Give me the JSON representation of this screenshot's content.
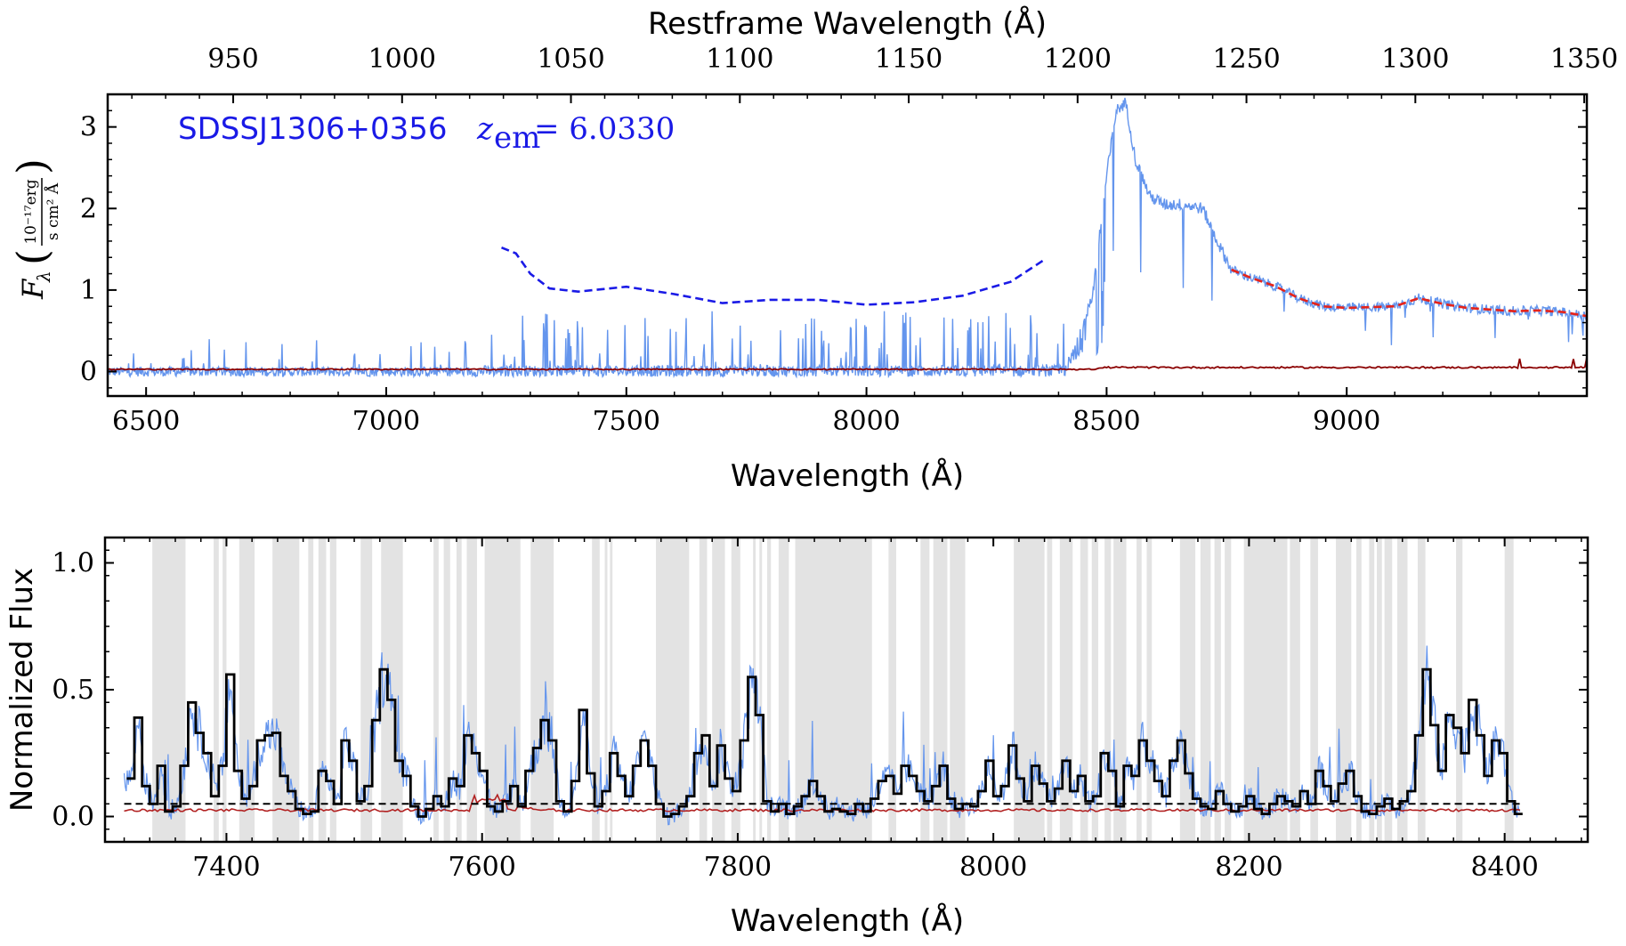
{
  "chart_data": [
    {
      "type": "line",
      "panel": "top",
      "xlabel": "Wavelength (Å)",
      "top_xlabel": "Restframe Wavelength (Å)",
      "ylabel_symbol": "F",
      "ylabel_sub": "λ",
      "ylabel_num": "10⁻¹⁷erg",
      "ylabel_den": "s cm² Å",
      "xlim": [
        6420,
        9500
      ],
      "ylim": [
        -0.3,
        3.4
      ],
      "x_ticks": [
        6500,
        7000,
        7500,
        8000,
        8500,
        9000
      ],
      "y_ticks": [
        0,
        1,
        2,
        3
      ],
      "top_ticks": [
        950,
        1000,
        1050,
        1100,
        1150,
        1200,
        1250,
        1300,
        1350
      ],
      "redshift": 6.033,
      "annotation_name": "SDSSJ1306+0356",
      "annotation_z_symbol": "z",
      "annotation_z_sub": "em",
      "annotation_z_value": "= 6.0330",
      "continuum_blue_dashed": [
        [
          7240,
          1.52
        ],
        [
          7270,
          1.45
        ],
        [
          7300,
          1.2
        ],
        [
          7340,
          1.02
        ],
        [
          7400,
          0.98
        ],
        [
          7500,
          1.04
        ],
        [
          7600,
          0.95
        ],
        [
          7700,
          0.84
        ],
        [
          7800,
          0.88
        ],
        [
          7900,
          0.88
        ],
        [
          8000,
          0.82
        ],
        [
          8100,
          0.85
        ],
        [
          8200,
          0.93
        ],
        [
          8300,
          1.1
        ],
        [
          8370,
          1.37
        ]
      ],
      "continuum_red_dashed": [
        [
          8760,
          1.25
        ],
        [
          8800,
          1.15
        ],
        [
          8850,
          1.05
        ],
        [
          8900,
          0.9
        ],
        [
          8950,
          0.8
        ],
        [
          9000,
          0.78
        ],
        [
          9050,
          0.79
        ],
        [
          9100,
          0.8
        ],
        [
          9150,
          0.9
        ],
        [
          9200,
          0.83
        ],
        [
          9250,
          0.78
        ],
        [
          9300,
          0.76
        ],
        [
          9350,
          0.74
        ],
        [
          9400,
          0.75
        ],
        [
          9450,
          0.73
        ],
        [
          9500,
          0.68
        ]
      ]
    },
    {
      "type": "line",
      "panel": "bottom",
      "xlabel": "Wavelength (Å)",
      "ylabel": "Normalized Flux",
      "xlim": [
        7305,
        8465
      ],
      "ylim": [
        -0.1,
        1.1
      ],
      "x_ticks": [
        7400,
        7600,
        7800,
        8000,
        8200,
        8400
      ],
      "y_ticks": [
        0.0,
        0.5,
        1.0
      ],
      "y_tick_labels": [
        "0.0",
        "0.5",
        "1.0"
      ],
      "dashed_level": 0.05,
      "error_level": 0.025,
      "masked_regions": [
        [
          7342,
          7368
        ],
        [
          7390,
          7394
        ],
        [
          7397,
          7400
        ],
        [
          7410,
          7422
        ],
        [
          7436,
          7457
        ],
        [
          7464,
          7468
        ],
        [
          7472,
          7478
        ],
        [
          7481,
          7486
        ],
        [
          7505,
          7514
        ],
        [
          7521,
          7538
        ],
        [
          7562,
          7566
        ],
        [
          7570,
          7575
        ],
        [
          7580,
          7584
        ],
        [
          7588,
          7596
        ],
        [
          7602,
          7630
        ],
        [
          7638,
          7656
        ],
        [
          7686,
          7692
        ],
        [
          7696,
          7698
        ],
        [
          7700,
          7702
        ],
        [
          7736,
          7762
        ],
        [
          7770,
          7776
        ],
        [
          7780,
          7790
        ],
        [
          7795,
          7802
        ],
        [
          7812,
          7814
        ],
        [
          7817,
          7819
        ],
        [
          7823,
          7826
        ],
        [
          7832,
          7840
        ],
        [
          7845,
          7905
        ],
        [
          7918,
          7924
        ],
        [
          7943,
          7950
        ],
        [
          7953,
          7964
        ],
        [
          7966,
          7978
        ],
        [
          8016,
          8040
        ],
        [
          8042,
          8046
        ],
        [
          8052,
          8062
        ],
        [
          8068,
          8074
        ],
        [
          8077,
          8082
        ],
        [
          8087,
          8092
        ],
        [
          8094,
          8104
        ],
        [
          8112,
          8116
        ],
        [
          8120,
          8124
        ],
        [
          8146,
          8158
        ],
        [
          8162,
          8170
        ],
        [
          8173,
          8178
        ],
        [
          8181,
          8186
        ],
        [
          8196,
          8230
        ],
        [
          8232,
          8240
        ],
        [
          8248,
          8254
        ],
        [
          8268,
          8280
        ],
        [
          8284,
          8288
        ],
        [
          8294,
          8298
        ],
        [
          8300,
          8304
        ],
        [
          8306,
          8312
        ],
        [
          8316,
          8324
        ],
        [
          8332,
          8338
        ],
        [
          8362,
          8367
        ],
        [
          8400,
          8407
        ]
      ],
      "binned_flux": [
        [
          7325,
          0.15
        ],
        [
          7331,
          0.39
        ],
        [
          7337,
          0.12
        ],
        [
          7343,
          0.05
        ],
        [
          7349,
          0.2
        ],
        [
          7355,
          0.02
        ],
        [
          7361,
          0.04
        ],
        [
          7367,
          0.2
        ],
        [
          7373,
          0.45
        ],
        [
          7379,
          0.33
        ],
        [
          7385,
          0.25
        ],
        [
          7391,
          0.08
        ],
        [
          7397,
          0.2
        ],
        [
          7403,
          0.56
        ],
        [
          7409,
          0.18
        ],
        [
          7415,
          0.07
        ],
        [
          7421,
          0.12
        ],
        [
          7427,
          0.3
        ],
        [
          7433,
          0.32
        ],
        [
          7439,
          0.33
        ],
        [
          7445,
          0.16
        ],
        [
          7451,
          0.1
        ],
        [
          7457,
          0.03
        ],
        [
          7463,
          0.01
        ],
        [
          7469,
          0.02
        ],
        [
          7475,
          0.18
        ],
        [
          7481,
          0.14
        ],
        [
          7487,
          0.05
        ],
        [
          7493,
          0.3
        ],
        [
          7499,
          0.22
        ],
        [
          7505,
          0.06
        ],
        [
          7511,
          0.12
        ],
        [
          7517,
          0.38
        ],
        [
          7523,
          0.58
        ],
        [
          7529,
          0.46
        ],
        [
          7535,
          0.22
        ],
        [
          7541,
          0.16
        ],
        [
          7547,
          0.04
        ],
        [
          7553,
          0.0
        ],
        [
          7559,
          0.03
        ],
        [
          7565,
          0.08
        ],
        [
          7571,
          0.04
        ],
        [
          7577,
          0.15
        ],
        [
          7583,
          0.12
        ],
        [
          7589,
          0.32
        ],
        [
          7595,
          0.25
        ],
        [
          7601,
          0.18
        ],
        [
          7607,
          0.04
        ],
        [
          7613,
          0.02
        ],
        [
          7619,
          0.06
        ],
        [
          7625,
          0.12
        ],
        [
          7631,
          0.04
        ],
        [
          7637,
          0.18
        ],
        [
          7643,
          0.27
        ],
        [
          7649,
          0.38
        ],
        [
          7655,
          0.3
        ],
        [
          7661,
          0.06
        ],
        [
          7667,
          0.02
        ],
        [
          7673,
          0.14
        ],
        [
          7679,
          0.42
        ],
        [
          7685,
          0.17
        ],
        [
          7691,
          0.04
        ],
        [
          7697,
          0.1
        ],
        [
          7703,
          0.25
        ],
        [
          7709,
          0.16
        ],
        [
          7715,
          0.08
        ],
        [
          7721,
          0.2
        ],
        [
          7727,
          0.3
        ],
        [
          7733,
          0.2
        ],
        [
          7739,
          0.05
        ],
        [
          7745,
          0.0
        ],
        [
          7751,
          0.01
        ],
        [
          7757,
          0.04
        ],
        [
          7763,
          0.08
        ],
        [
          7769,
          0.25
        ],
        [
          7775,
          0.32
        ],
        [
          7781,
          0.12
        ],
        [
          7787,
          0.28
        ],
        [
          7793,
          0.15
        ],
        [
          7799,
          0.1
        ],
        [
          7805,
          0.3
        ],
        [
          7811,
          0.55
        ],
        [
          7817,
          0.4
        ],
        [
          7823,
          0.06
        ],
        [
          7829,
          0.02
        ],
        [
          7835,
          0.05
        ],
        [
          7841,
          0.01
        ],
        [
          7847,
          0.04
        ],
        [
          7853,
          0.08
        ],
        [
          7859,
          0.14
        ],
        [
          7865,
          0.08
        ],
        [
          7871,
          0.02
        ],
        [
          7877,
          0.03
        ],
        [
          7883,
          0.02
        ],
        [
          7889,
          0.01
        ],
        [
          7895,
          0.05
        ],
        [
          7901,
          0.02
        ],
        [
          7907,
          0.07
        ],
        [
          7913,
          0.14
        ],
        [
          7919,
          0.16
        ],
        [
          7925,
          0.09
        ],
        [
          7931,
          0.2
        ],
        [
          7937,
          0.16
        ],
        [
          7943,
          0.1
        ],
        [
          7949,
          0.06
        ],
        [
          7955,
          0.12
        ],
        [
          7961,
          0.2
        ],
        [
          7967,
          0.07
        ],
        [
          7973,
          0.03
        ],
        [
          7979,
          0.05
        ],
        [
          7985,
          0.04
        ],
        [
          7991,
          0.1
        ],
        [
          7997,
          0.22
        ],
        [
          8003,
          0.08
        ],
        [
          8009,
          0.12
        ],
        [
          8015,
          0.28
        ],
        [
          8021,
          0.15
        ],
        [
          8027,
          0.06
        ],
        [
          8033,
          0.2
        ],
        [
          8039,
          0.13
        ],
        [
          8045,
          0.06
        ],
        [
          8051,
          0.11
        ],
        [
          8057,
          0.22
        ],
        [
          8063,
          0.1
        ],
        [
          8069,
          0.16
        ],
        [
          8075,
          0.06
        ],
        [
          8081,
          0.08
        ],
        [
          8087,
          0.25
        ],
        [
          8093,
          0.18
        ],
        [
          8099,
          0.04
        ],
        [
          8105,
          0.2
        ],
        [
          8111,
          0.16
        ],
        [
          8117,
          0.3
        ],
        [
          8123,
          0.22
        ],
        [
          8129,
          0.14
        ],
        [
          8135,
          0.08
        ],
        [
          8141,
          0.22
        ],
        [
          8147,
          0.3
        ],
        [
          8153,
          0.17
        ],
        [
          8159,
          0.07
        ],
        [
          8165,
          0.04
        ],
        [
          8171,
          0.03
        ],
        [
          8177,
          0.1
        ],
        [
          8183,
          0.05
        ],
        [
          8189,
          0.02
        ],
        [
          8195,
          0.04
        ],
        [
          8201,
          0.08
        ],
        [
          8207,
          0.03
        ],
        [
          8213,
          0.01
        ],
        [
          8219,
          0.05
        ],
        [
          8225,
          0.08
        ],
        [
          8231,
          0.06
        ],
        [
          8237,
          0.04
        ],
        [
          8243,
          0.1
        ],
        [
          8249,
          0.05
        ],
        [
          8255,
          0.18
        ],
        [
          8261,
          0.12
        ],
        [
          8267,
          0.06
        ],
        [
          8273,
          0.13
        ],
        [
          8279,
          0.18
        ],
        [
          8285,
          0.08
        ],
        [
          8291,
          0.02
        ],
        [
          8297,
          0.01
        ],
        [
          8303,
          0.04
        ],
        [
          8309,
          0.07
        ],
        [
          8315,
          0.03
        ],
        [
          8321,
          0.06
        ],
        [
          8327,
          0.1
        ],
        [
          8333,
          0.32
        ],
        [
          8339,
          0.58
        ],
        [
          8345,
          0.36
        ],
        [
          8351,
          0.18
        ],
        [
          8357,
          0.4
        ],
        [
          8363,
          0.35
        ],
        [
          8369,
          0.25
        ],
        [
          8375,
          0.46
        ],
        [
          8381,
          0.32
        ],
        [
          8387,
          0.16
        ],
        [
          8393,
          0.3
        ],
        [
          8399,
          0.25
        ],
        [
          8405,
          0.06
        ],
        [
          8411,
          0.01
        ]
      ]
    }
  ]
}
